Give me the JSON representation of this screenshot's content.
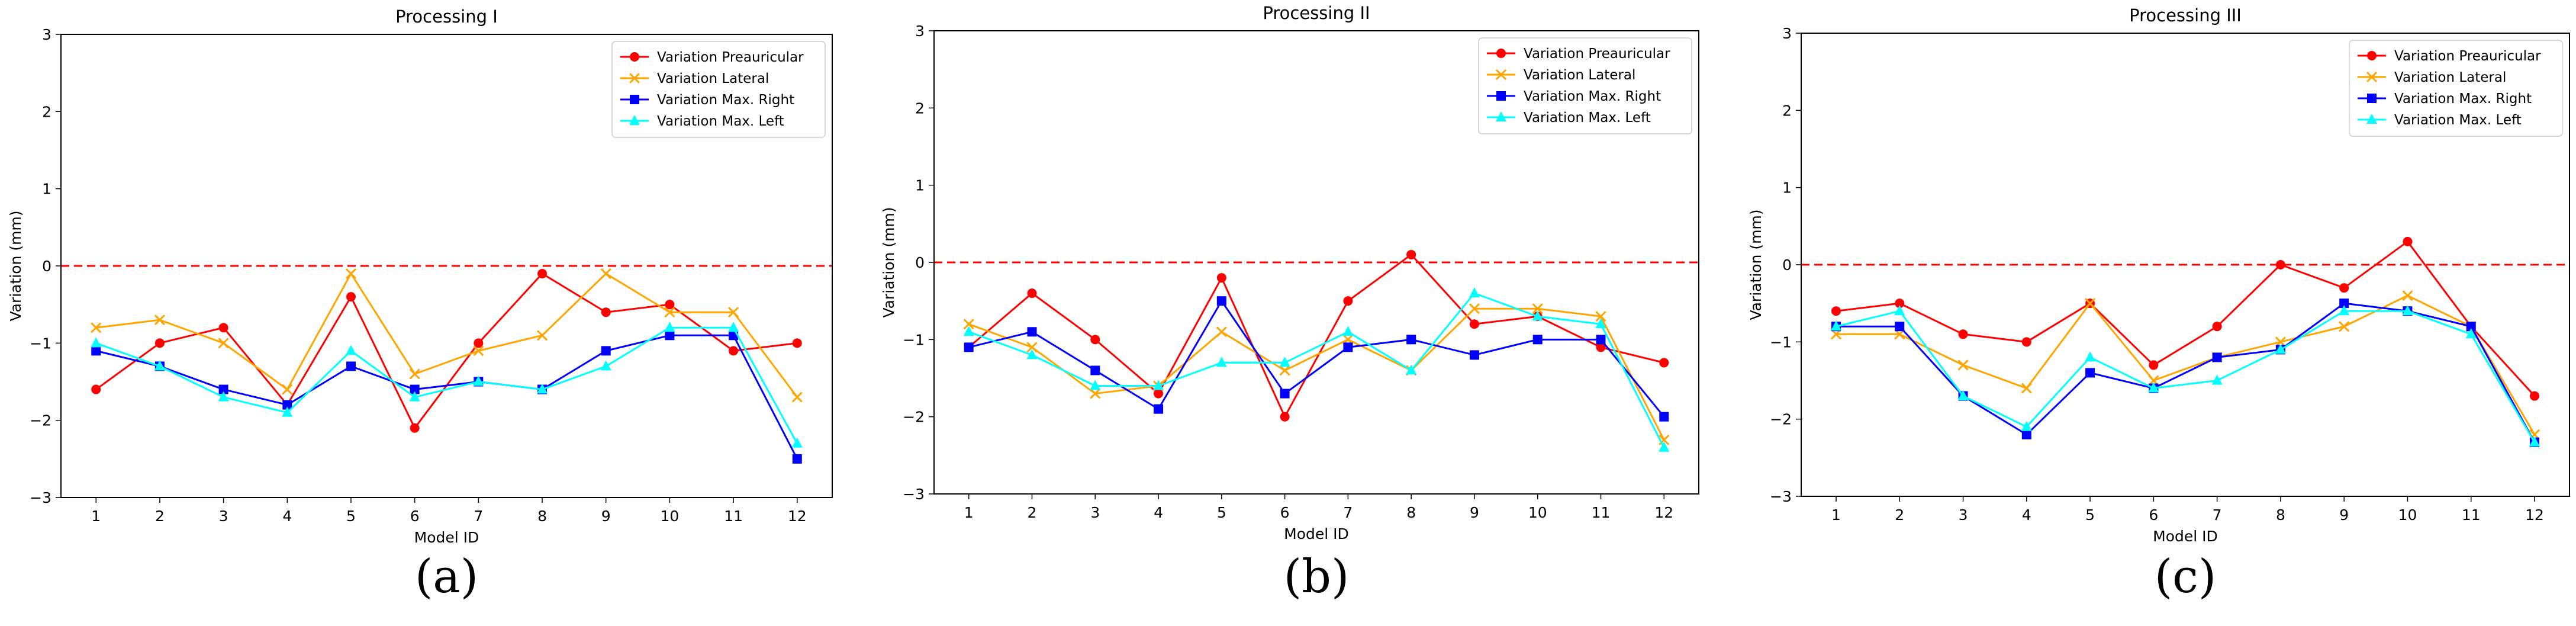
{
  "chart_data": [
    {
      "type": "line",
      "panel_label": "(a)",
      "title": "Processing I",
      "xlabel": "Model ID",
      "ylabel": "Variation (mm)",
      "x": [
        1,
        2,
        3,
        4,
        5,
        6,
        7,
        8,
        9,
        10,
        11,
        12
      ],
      "xticks": [
        "1",
        "2",
        "3",
        "4",
        "5",
        "6",
        "7",
        "8",
        "9",
        "10",
        "11",
        "12"
      ],
      "ylim": [
        -3,
        3
      ],
      "yticks": [
        -3,
        -2,
        -1,
        0,
        1,
        2,
        3
      ],
      "ytick_labels": [
        "−3",
        "−2",
        "−1",
        "0",
        "1",
        "2",
        "3"
      ],
      "reference_line": 0,
      "legend_position": "upper right",
      "series": [
        {
          "name": "Variation Preauricular",
          "color": "#ff0000",
          "marker": "circle",
          "values": [
            -1.6,
            -1.0,
            -0.8,
            -1.8,
            -0.4,
            -2.1,
            -1.0,
            -0.1,
            -0.6,
            -0.5,
            -1.1,
            -1.0
          ]
        },
        {
          "name": "Variation Lateral",
          "color": "#ffa500",
          "marker": "x",
          "values": [
            -0.8,
            -0.7,
            -1.0,
            -1.6,
            -0.1,
            -1.4,
            -1.1,
            -0.9,
            -0.1,
            -0.6,
            -0.6,
            -1.7
          ]
        },
        {
          "name": "Variation Max. Right",
          "color": "#0000ff",
          "marker": "square",
          "values": [
            -1.1,
            -1.3,
            -1.6,
            -1.8,
            -1.3,
            -1.6,
            -1.5,
            -1.6,
            -1.1,
            -0.9,
            -0.9,
            -2.5
          ]
        },
        {
          "name": "Variation Max. Left",
          "color": "#00ffff",
          "marker": "triangle",
          "values": [
            -1.0,
            -1.3,
            -1.7,
            -1.9,
            -1.1,
            -1.7,
            -1.5,
            -1.6,
            -1.3,
            -0.8,
            -0.8,
            -2.3
          ]
        }
      ]
    },
    {
      "type": "line",
      "panel_label": "(b)",
      "title": "Processing II",
      "xlabel": "Model ID",
      "ylabel": "Variation (mm)",
      "x": [
        1,
        2,
        3,
        4,
        5,
        6,
        7,
        8,
        9,
        10,
        11,
        12
      ],
      "xticks": [
        "1",
        "2",
        "3",
        "4",
        "5",
        "6",
        "7",
        "8",
        "9",
        "10",
        "11",
        "12"
      ],
      "ylim": [
        -3,
        3
      ],
      "yticks": [
        -3,
        -2,
        -1,
        0,
        1,
        2,
        3
      ],
      "ytick_labels": [
        "−3",
        "−2",
        "−1",
        "0",
        "1",
        "2",
        "3"
      ],
      "reference_line": 0,
      "legend_position": "upper right",
      "series": [
        {
          "name": "Variation Preauricular",
          "color": "#ff0000",
          "marker": "circle",
          "values": [
            -1.1,
            -0.4,
            -1.0,
            -1.7,
            -0.2,
            -2.0,
            -0.5,
            0.1,
            -0.8,
            -0.7,
            -1.1,
            -1.3
          ]
        },
        {
          "name": "Variation Lateral",
          "color": "#ffa500",
          "marker": "x",
          "values": [
            -0.8,
            -1.1,
            -1.7,
            -1.6,
            -0.9,
            -1.4,
            -1.0,
            -1.4,
            -0.6,
            -0.6,
            -0.7,
            -2.3
          ]
        },
        {
          "name": "Variation Max. Right",
          "color": "#0000ff",
          "marker": "square",
          "values": [
            -1.1,
            -0.9,
            -1.4,
            -1.9,
            -0.5,
            -1.7,
            -1.1,
            -1.0,
            -1.2,
            -1.0,
            -1.0,
            -2.0
          ]
        },
        {
          "name": "Variation Max. Left",
          "color": "#00ffff",
          "marker": "triangle",
          "values": [
            -0.9,
            -1.2,
            -1.6,
            -1.6,
            -1.3,
            -1.3,
            -0.9,
            -1.4,
            -0.4,
            -0.7,
            -0.8,
            -2.4
          ]
        }
      ]
    },
    {
      "type": "line",
      "panel_label": "(c)",
      "title": "Processing III",
      "xlabel": "Model ID",
      "ylabel": "Variation (mm)",
      "x": [
        1,
        2,
        3,
        4,
        5,
        6,
        7,
        8,
        9,
        10,
        11,
        12
      ],
      "xticks": [
        "1",
        "2",
        "3",
        "4",
        "5",
        "6",
        "7",
        "8",
        "9",
        "10",
        "11",
        "12"
      ],
      "ylim": [
        -3,
        3
      ],
      "yticks": [
        -3,
        -2,
        -1,
        0,
        1,
        2,
        3
      ],
      "ytick_labels": [
        "−3",
        "−2",
        "−1",
        "0",
        "1",
        "2",
        "3"
      ],
      "reference_line": 0,
      "legend_position": "upper right",
      "series": [
        {
          "name": "Variation Preauricular",
          "color": "#ff0000",
          "marker": "circle",
          "values": [
            -0.6,
            -0.5,
            -0.9,
            -1.0,
            -0.5,
            -1.3,
            -0.8,
            0.0,
            -0.3,
            0.3,
            -0.8,
            -1.7
          ]
        },
        {
          "name": "Variation Lateral",
          "color": "#ffa500",
          "marker": "x",
          "values": [
            -0.9,
            -0.9,
            -1.3,
            -1.6,
            -0.5,
            -1.5,
            -1.2,
            -1.0,
            -0.8,
            -0.4,
            -0.8,
            -2.2
          ]
        },
        {
          "name": "Variation Max. Right",
          "color": "#0000ff",
          "marker": "square",
          "values": [
            -0.8,
            -0.8,
            -1.7,
            -2.2,
            -1.4,
            -1.6,
            -1.2,
            -1.1,
            -0.5,
            -0.6,
            -0.8,
            -2.3
          ]
        },
        {
          "name": "Variation Max. Left",
          "color": "#00ffff",
          "marker": "triangle",
          "values": [
            -0.8,
            -0.6,
            -1.7,
            -2.1,
            -1.2,
            -1.6,
            -1.5,
            -1.1,
            -0.6,
            -0.6,
            -0.9,
            -2.3
          ]
        }
      ]
    }
  ]
}
